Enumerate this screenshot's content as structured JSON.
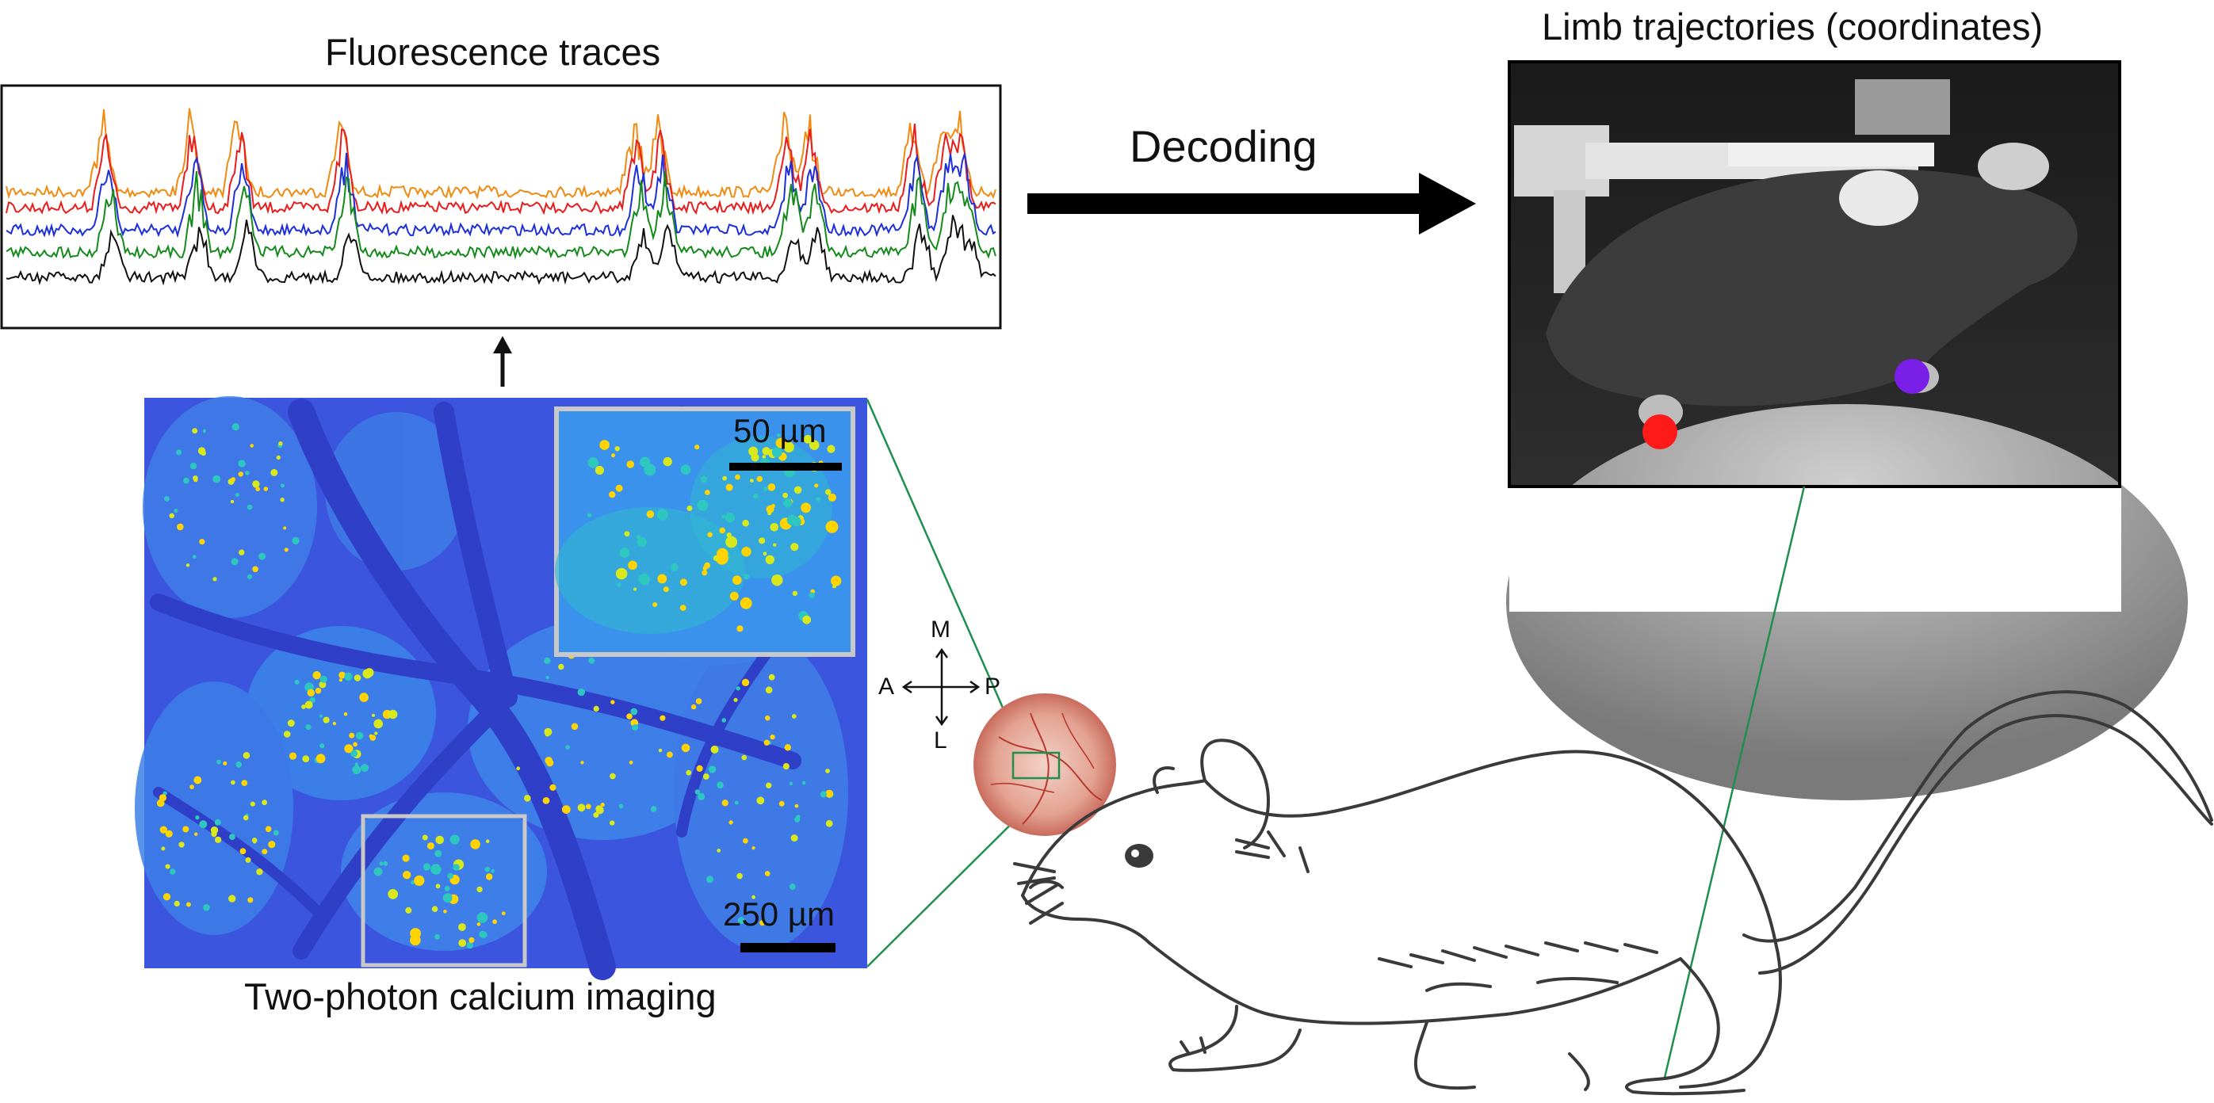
{
  "titles": {
    "fluorescence": "Fluorescence traces",
    "limb": "Limb trajectories (coordinates)",
    "decoding": "Decoding",
    "imaging": "Two-photon calcium imaging"
  },
  "scalebars": {
    "inset": "50 µm",
    "main": "250 µm"
  },
  "compass": {
    "medial": "M",
    "lateral": "L",
    "anterior": "A",
    "posterior": "P"
  },
  "traces": {
    "colors": [
      "#f08a10",
      "#e81c1c",
      "#1c2fd8",
      "#138a1a",
      "#111111"
    ]
  },
  "markers": {
    "left_paw_color": "#ff1a1a",
    "right_paw_color": "#7a1fe8"
  },
  "imaging_colormap": [
    "#3a4fe0",
    "#3b8cf0",
    "#2ec7c0",
    "#d9e81a",
    "#ffd400"
  ]
}
